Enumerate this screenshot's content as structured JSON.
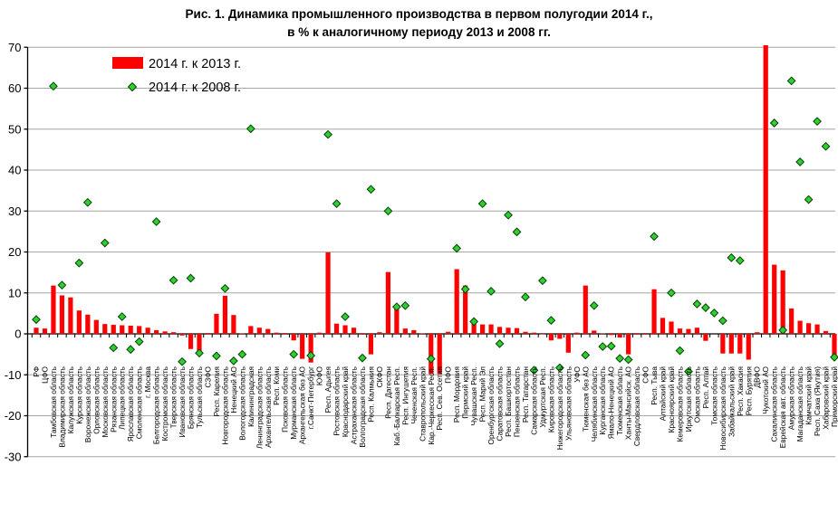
{
  "title_line1": "Рис. 1. Динамика промышленного производства в первом полугодии 2014 г.,",
  "title_line2": "в % к аналогичному периоду 2013 и 2008 гг.",
  "legend": {
    "bar_label": "2014 г. к 2013 г.",
    "diamond_label": "2014 г. к 2008 г."
  },
  "colors": {
    "bar": "#FF0000",
    "diamond_fill": "#33CC33",
    "diamond_stroke": "#004400",
    "grid": "#A6A6A6",
    "axis": "#000000",
    "text": "#000000"
  },
  "chart_data": {
    "type": "bar",
    "title": "Рис. 1. Динамика промышленного производства в первом полугодии 2014 г., в % к аналогичному периоду 2013 и 2008 гг.",
    "ylim": [
      -30,
      70
    ],
    "ytick_step": 10,
    "grid": true,
    "legend_position": "top-left",
    "categories": [
      "РФ",
      "ЦФО",
      "Тамбовская область",
      "Владимирская область",
      "Калужская область",
      "Курская область",
      "Воронежская область",
      "Орловская область",
      "Московская область",
      "Рязанская область",
      "Липецкая область",
      "Ярославская область",
      "Смоленская область",
      "г. Москва",
      "Белгородская область",
      "Костромская область",
      "Тверская область",
      "Ивановская область",
      "Брянская область",
      "Тульская область",
      "СЗФО",
      "Респ. Карелия",
      "Новгородская область",
      "Ненецкий АО",
      "Вологодская область",
      "Калининградская",
      "Ленинградская область",
      "Архангельская область",
      "Респ. Коми",
      "Псковская область",
      "Мурманская область",
      "Архангельская без АО",
      "г.Санкт-Петербург",
      "ЮФО",
      "Респ. Адыгея",
      "Ростовская область",
      "Краснодарский край",
      "Астраханская область",
      "Волгоградская область",
      "Респ. Калмыкия",
      "СКФО",
      "Респ. Дагестан",
      "Каб.-Балкарская Респ.",
      "Респ. Ингушетия",
      "Чеченская Респ.",
      "Ставропольский край",
      "Кар.-Черкесская Респ.",
      "Респ. Сев. Осетия",
      "ПФО",
      "Респ. Мордовия",
      "Пермский край",
      "Чувашская Респ.",
      "Респ. Марий Эл",
      "Оренбургская область",
      "Саратовская область",
      "Респ. Башкортостан",
      "Пензенская область",
      "Респ. Татарстан",
      "Самарская область",
      "Удмуртская Респ.",
      "Кировская область",
      "Нижегородская область",
      "Ульяновская область",
      "УФО",
      "Тюменская без АО",
      "Челябинская область",
      "Курганская область",
      "Ямало-Ненецкий АО",
      "Тюменская область",
      "Ханты-Мансийск. АО",
      "Свердловская область",
      "СФО",
      "Респ. Тыва",
      "Алтайский край",
      "Красноярский край",
      "Кемеровская область",
      "Иркутская область",
      "Омская область",
      "Респ. Алтай",
      "Томская область",
      "Новосибирская область",
      "Забайкальский край",
      "Респ. Хакасия",
      "Респ. Бурятия",
      "ДВФО",
      "Чукотский АО",
      "Сахалинская область",
      "Еврейская авт. область",
      "Амурская область",
      "Магаданская область",
      "Камчатский край",
      "Респ. Саха (Якутия)",
      "Хабаровский край",
      "Приморский край"
    ],
    "series": [
      {
        "name": "2014 г. к 2013 г.",
        "marker": "bar",
        "values": [
          1.5,
          1.3,
          11.8,
          9.4,
          8.9,
          5.7,
          4.7,
          3.4,
          2.4,
          2.2,
          2.1,
          2.0,
          1.9,
          1.5,
          0.9,
          0.6,
          0.4,
          -0.4,
          -3.7,
          -4.7,
          0.2,
          4.9,
          9.3,
          4.6,
          0.1,
          1.9,
          1.5,
          1.2,
          0.3,
          0.2,
          -1.6,
          -6.1,
          -7.0,
          0.3,
          19.9,
          2.5,
          2.1,
          1.5,
          -0.2,
          -5.0,
          0.4,
          15.1,
          6.4,
          1.3,
          0.9,
          0.1,
          -9.8,
          -9.8,
          0.5,
          15.8,
          11.8,
          3.6,
          2.3,
          2.3,
          1.7,
          1.5,
          1.4,
          0.5,
          0.3,
          -0.1,
          -1.6,
          -1.2,
          -4.6,
          0.3,
          11.8,
          0.8,
          0.1,
          -0.3,
          -0.9,
          -5.0,
          -0.2,
          0.2,
          10.9,
          3.9,
          3.0,
          1.3,
          1.2,
          1.5,
          -1.7,
          null,
          -4.8,
          -4.8,
          -4.8,
          -6.3,
          0.4,
          70.5,
          16.9,
          15.5,
          6.2,
          3.2,
          2.6,
          2.3,
          0.7,
          -6.1
        ]
      },
      {
        "name": "2014 г. к 2008 г.",
        "marker": "diamond",
        "values": [
          3.5,
          null,
          60.5,
          11.9,
          null,
          17.3,
          32.1,
          null,
          22.2,
          -3.4,
          4.2,
          -3.8,
          -1.9,
          null,
          27.4,
          null,
          13.1,
          -6.8,
          13.6,
          -4.7,
          null,
          -5.4,
          11.1,
          -6.6,
          -5.0,
          50.1,
          null,
          null,
          null,
          null,
          -5.0,
          null,
          -5.3,
          null,
          48.7,
          31.8,
          4.2,
          null,
          -5.9,
          35.3,
          null,
          30.0,
          6.6,
          6.9,
          null,
          null,
          -6.1,
          null,
          null,
          20.9,
          10.9,
          3.0,
          31.8,
          10.4,
          -2.4,
          29.0,
          24.9,
          9.0,
          -8.9,
          13.0,
          3.3,
          -8.3,
          null,
          null,
          -5.2,
          6.9,
          -3.1,
          -3.0,
          -6.0,
          -6.3,
          null,
          null,
          23.8,
          null,
          10.0,
          -4.1,
          -9.2,
          7.3,
          6.4,
          5.1,
          3.2,
          18.6,
          17.9,
          null,
          null,
          null,
          51.5,
          0.9,
          61.8,
          42.0,
          32.8,
          51.9,
          45.8,
          -5.7
        ]
      }
    ],
    "xlabel": "",
    "ylabel": ""
  }
}
